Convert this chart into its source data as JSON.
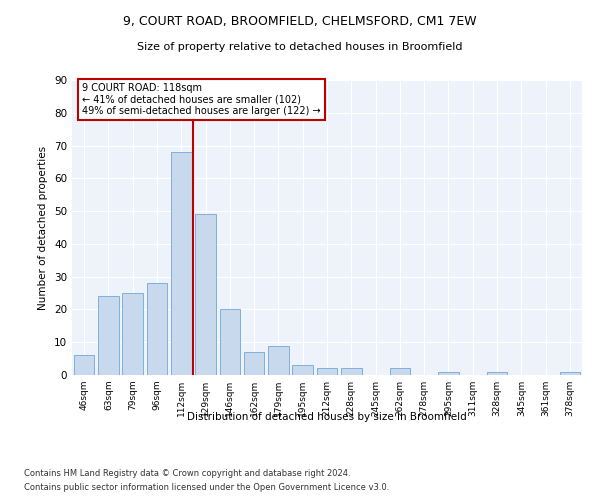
{
  "title_line1": "9, COURT ROAD, BROOMFIELD, CHELMSFORD, CM1 7EW",
  "title_line2": "Size of property relative to detached houses in Broomfield",
  "xlabel": "Distribution of detached houses by size in Broomfield",
  "ylabel": "Number of detached properties",
  "categories": [
    "46sqm",
    "63sqm",
    "79sqm",
    "96sqm",
    "112sqm",
    "129sqm",
    "146sqm",
    "162sqm",
    "179sqm",
    "195sqm",
    "212sqm",
    "228sqm",
    "245sqm",
    "262sqm",
    "278sqm",
    "295sqm",
    "311sqm",
    "328sqm",
    "345sqm",
    "361sqm",
    "378sqm"
  ],
  "values": [
    6,
    24,
    25,
    28,
    68,
    49,
    20,
    7,
    9,
    3,
    2,
    2,
    0,
    2,
    0,
    1,
    0,
    1,
    0,
    0,
    1
  ],
  "bar_color": "#c8d9ed",
  "bar_edge_color": "#6fa8d6",
  "vline_color": "#c00000",
  "vline_x": 4.5,
  "annotation_text": "9 COURT ROAD: 118sqm\n← 41% of detached houses are smaller (102)\n49% of semi-detached houses are larger (122) →",
  "annotation_box_color": "white",
  "annotation_box_edge": "#c00000",
  "background_color": "#eef3fb",
  "grid_color": "white",
  "footer_line1": "Contains HM Land Registry data © Crown copyright and database right 2024.",
  "footer_line2": "Contains public sector information licensed under the Open Government Licence v3.0.",
  "ylim": [
    0,
    90
  ],
  "yticks": [
    0,
    10,
    20,
    30,
    40,
    50,
    60,
    70,
    80,
    90
  ]
}
